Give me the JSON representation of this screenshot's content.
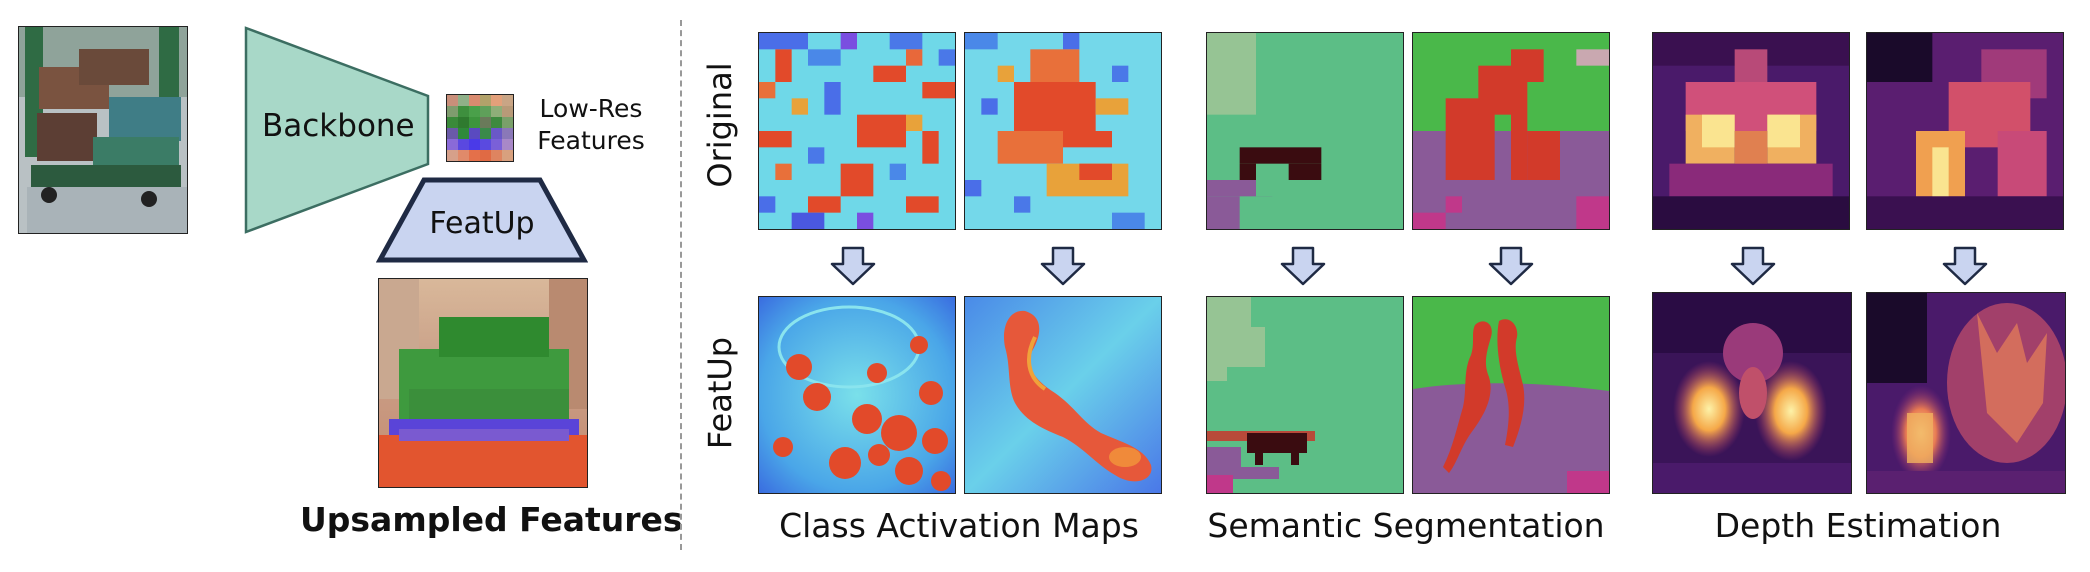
{
  "pipeline": {
    "backbone_label": "Backbone",
    "lowres_label_line1": "Low-Res",
    "lowres_label_line2": "Features",
    "featup_label": "FeatUp",
    "upsampled_caption": "Upsampled Features"
  },
  "row_labels": {
    "top": "Original",
    "bottom": "FeatUp"
  },
  "task_captions": {
    "cam": "Class Activation Maps",
    "seg": "Semantic Segmentation",
    "depth": "Depth Estimation"
  },
  "colors": {
    "backbone_fill": "#a8d8c8",
    "backbone_stroke": "#3c6e62",
    "featup_fill": "#c9d4f0",
    "featup_stroke": "#1f2a44",
    "arrow_fill": "#c9d4f0",
    "arrow_stroke": "#1f2a44",
    "divider": "#999999"
  },
  "icons": [
    "down-arrow-icon"
  ]
}
